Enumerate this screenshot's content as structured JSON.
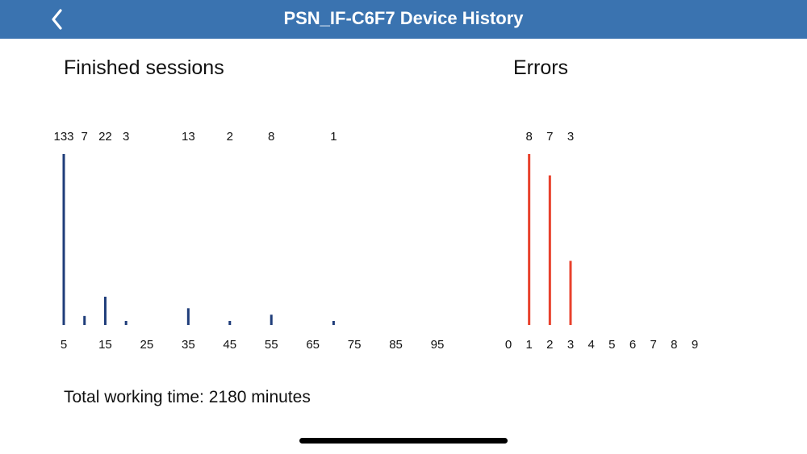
{
  "header": {
    "title": "PSN_IF-C6F7 Device History",
    "back_icon": "chevron-left-icon",
    "background": "#3a73b0"
  },
  "sessions": {
    "title": "Finished sessions"
  },
  "errors": {
    "title": "Errors"
  },
  "footer": {
    "total_working_time": "Total working time: 2180 minutes"
  },
  "chart_data": [
    {
      "type": "bar",
      "title": "Finished sessions",
      "color": "#1f3d7a",
      "x_ticks": [
        "5",
        "15",
        "25",
        "35",
        "45",
        "55",
        "65",
        "75",
        "85",
        "95"
      ],
      "xlim": [
        5,
        95
      ],
      "bars": [
        {
          "x": 5,
          "value": 133,
          "label": "133"
        },
        {
          "x": 10,
          "value": 7,
          "label": "7"
        },
        {
          "x": 15,
          "value": 22,
          "label": "22"
        },
        {
          "x": 20,
          "value": 3,
          "label": "3"
        },
        {
          "x": 35,
          "value": 13,
          "label": "13"
        },
        {
          "x": 45,
          "value": 2,
          "label": "2"
        },
        {
          "x": 55,
          "value": 8,
          "label": "8"
        },
        {
          "x": 70,
          "value": 1,
          "label": "1"
        }
      ]
    },
    {
      "type": "bar",
      "title": "Errors",
      "color": "#e8412c",
      "x_ticks": [
        "0",
        "1",
        "2",
        "3",
        "4",
        "5",
        "6",
        "7",
        "8",
        "9"
      ],
      "xlim": [
        0,
        9
      ],
      "bars": [
        {
          "x": 1,
          "value": 8,
          "label": "8"
        },
        {
          "x": 2,
          "value": 7,
          "label": "7"
        },
        {
          "x": 3,
          "value": 3,
          "label": "3"
        }
      ]
    }
  ]
}
